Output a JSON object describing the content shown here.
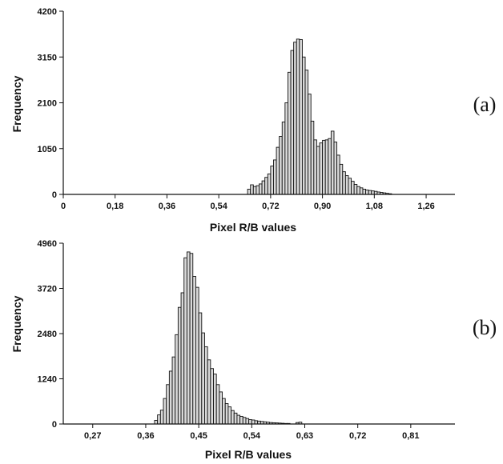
{
  "chart_data": [
    {
      "type": "bar",
      "panel_label": "(a)",
      "xlabel": "Pixel R/B values",
      "ylabel": "Frequency",
      "xlim": [
        0,
        1.36
      ],
      "ylim": [
        0,
        4200
      ],
      "x_ticks": [
        "0",
        "0,18",
        "0,36",
        "0,54",
        "0,72",
        "0,90",
        "1,08",
        "1,26"
      ],
      "x_tick_values": [
        0,
        0.18,
        0.36,
        0.54,
        0.72,
        0.9,
        1.08,
        1.26
      ],
      "y_ticks": [
        "0",
        "1050",
        "2100",
        "3150",
        "4200"
      ],
      "y_tick_values": [
        0,
        1050,
        2100,
        3150,
        4200
      ],
      "bin_width": 0.01,
      "x": [
        0.64,
        0.65,
        0.66,
        0.67,
        0.68,
        0.69,
        0.7,
        0.71,
        0.72,
        0.73,
        0.74,
        0.75,
        0.76,
        0.77,
        0.78,
        0.79,
        0.8,
        0.81,
        0.82,
        0.83,
        0.84,
        0.85,
        0.86,
        0.87,
        0.88,
        0.89,
        0.9,
        0.91,
        0.92,
        0.93,
        0.94,
        0.95,
        0.96,
        0.97,
        0.98,
        0.99,
        1.0,
        1.01,
        1.02,
        1.03,
        1.04,
        1.05,
        1.06,
        1.07,
        1.08,
        1.09,
        1.1,
        1.11,
        1.12,
        1.13
      ],
      "values": [
        120,
        220,
        180,
        200,
        240,
        310,
        390,
        470,
        650,
        790,
        1080,
        1330,
        1660,
        2100,
        2800,
        3300,
        3490,
        3560,
        3550,
        3150,
        2850,
        2300,
        1680,
        1250,
        1100,
        1180,
        1240,
        1250,
        1280,
        1450,
        1200,
        900,
        690,
        520,
        430,
        370,
        300,
        230,
        180,
        150,
        120,
        100,
        90,
        80,
        70,
        55,
        45,
        35,
        25,
        15
      ]
    },
    {
      "type": "bar",
      "panel_label": "(b)",
      "xlabel": "Pixel R/B values",
      "ylabel": "Frequency",
      "xlim": [
        0.22,
        0.885
      ],
      "ylim": [
        0,
        4960
      ],
      "x_ticks": [
        "0,27",
        "0,36",
        "0,45",
        "0,54",
        "0,63",
        "0,72",
        "0,81"
      ],
      "x_tick_values": [
        0.27,
        0.36,
        0.45,
        0.54,
        0.63,
        0.72,
        0.81
      ],
      "y_ticks": [
        "0",
        "1240",
        "2480",
        "3720",
        "4960"
      ],
      "y_tick_values": [
        0,
        1240,
        2480,
        3720,
        4960
      ],
      "bin_width": 0.005,
      "x": [
        0.375,
        0.38,
        0.385,
        0.39,
        0.395,
        0.4,
        0.405,
        0.41,
        0.415,
        0.42,
        0.425,
        0.43,
        0.435,
        0.44,
        0.445,
        0.45,
        0.455,
        0.46,
        0.465,
        0.47,
        0.475,
        0.48,
        0.485,
        0.49,
        0.495,
        0.5,
        0.505,
        0.51,
        0.515,
        0.52,
        0.525,
        0.53,
        0.535,
        0.54,
        0.545,
        0.55,
        0.555,
        0.56,
        0.565,
        0.57,
        0.575,
        0.58,
        0.585,
        0.59,
        0.595,
        0.6,
        0.615,
        0.62
      ],
      "values": [
        100,
        250,
        380,
        700,
        1080,
        1450,
        1840,
        2450,
        3200,
        3600,
        4560,
        4720,
        4680,
        4050,
        3750,
        3050,
        2500,
        2120,
        1760,
        1520,
        1370,
        1080,
        880,
        700,
        560,
        470,
        370,
        300,
        240,
        210,
        180,
        150,
        120,
        110,
        90,
        80,
        70,
        60,
        50,
        40,
        35,
        30,
        25,
        20,
        15,
        15,
        40,
        50
      ]
    }
  ]
}
